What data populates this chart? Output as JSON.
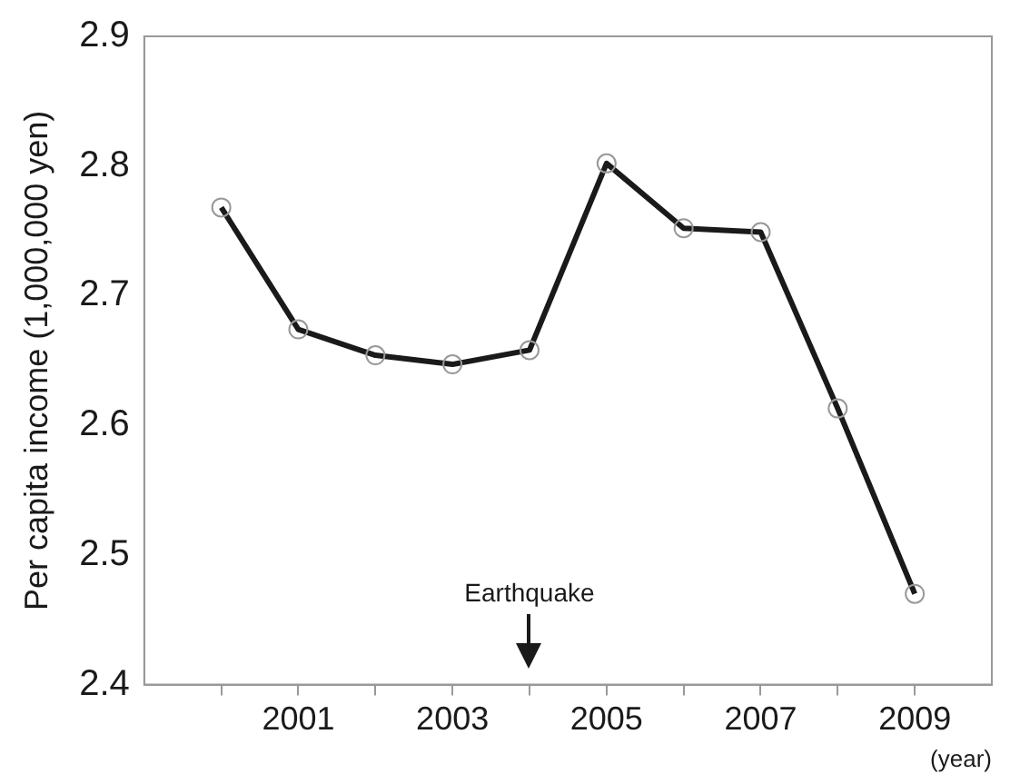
{
  "chart_data": {
    "type": "line",
    "ylabel": "Per capita income (1,000,000 yen)",
    "xlabel": "(year)",
    "x": [
      2000,
      2001,
      2002,
      2003,
      2004,
      2005,
      2006,
      2007,
      2008,
      2009
    ],
    "values": [
      2.768,
      2.674,
      2.654,
      2.647,
      2.658,
      2.802,
      2.752,
      2.749,
      2.613,
      2.47
    ],
    "color": "#1a1a1a",
    "marker": "circle",
    "line_style": "solid",
    "grid": false,
    "legend": false,
    "xlim": [
      1999,
      2010
    ],
    "xticks": [
      {
        "value": 2000,
        "label": null
      },
      2001,
      {
        "value": 2002,
        "label": null
      },
      2003,
      {
        "value": 2004,
        "label": null
      },
      2005,
      {
        "value": 2006,
        "label": null
      },
      2007,
      {
        "value": 2008,
        "label": null
      },
      2009
    ],
    "ylim": [
      2.4,
      2.9
    ],
    "yticks": [
      {
        "value": 2.4,
        "label": "2.4"
      },
      2.5,
      2.6,
      2.7,
      2.8,
      2.9
    ],
    "annotations": [
      "Earthquake"
    ]
  }
}
